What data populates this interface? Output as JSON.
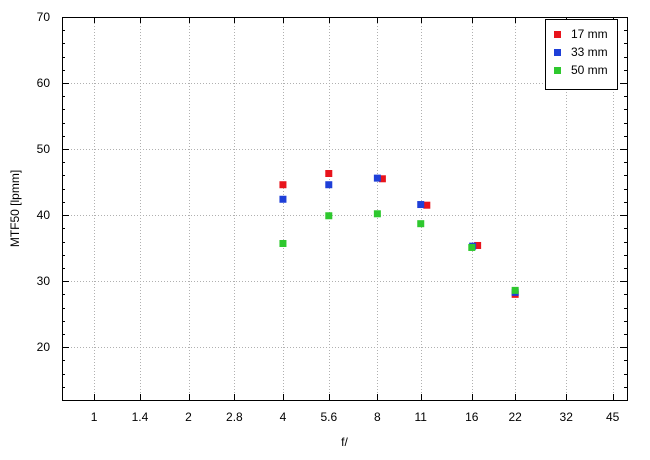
{
  "chart_data": {
    "type": "scatter",
    "title": "",
    "xlabel": "f/",
    "ylabel": "MTF50 [lpmm]",
    "x_scale": "log",
    "x_ticks": [
      "1",
      "1.4",
      "2",
      "2.8",
      "4",
      "5.6",
      "8",
      "11",
      "16",
      "22",
      "32",
      "45"
    ],
    "x_tick_values": [
      1,
      1.4,
      2,
      2.8,
      4,
      5.6,
      8,
      11,
      16,
      22,
      32,
      45
    ],
    "xlim": [
      0.79,
      50
    ],
    "ylim": [
      12,
      70
    ],
    "y_ticks": [
      20,
      30,
      40,
      50,
      60,
      70
    ],
    "grid": true,
    "legend_position": "top-right",
    "series": [
      {
        "name": "17 mm",
        "color": "#e8141c",
        "points": [
          [
            4,
            44.6
          ],
          [
            5.6,
            46.3
          ],
          [
            8.3,
            45.5
          ],
          [
            11.5,
            41.5
          ],
          [
            16.7,
            35.4
          ],
          [
            22,
            28.0
          ]
        ]
      },
      {
        "name": "33 mm",
        "color": "#1e3fd8",
        "points": [
          [
            4,
            42.4
          ],
          [
            5.6,
            44.6
          ],
          [
            8,
            45.6
          ],
          [
            11,
            41.6
          ],
          [
            16.1,
            35.3
          ],
          [
            22,
            28.3
          ]
        ]
      },
      {
        "name": "50 mm",
        "color": "#2ec82e",
        "points": [
          [
            4,
            35.7
          ],
          [
            5.6,
            39.9
          ],
          [
            8,
            40.2
          ],
          [
            11,
            38.7
          ],
          [
            16,
            35.1
          ],
          [
            22,
            28.6
          ]
        ]
      }
    ]
  }
}
